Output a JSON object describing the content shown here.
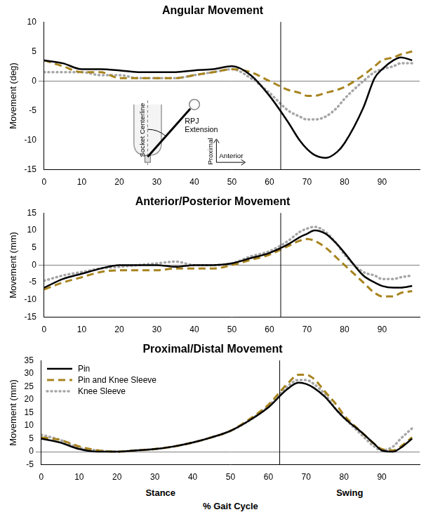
{
  "chart_data": [
    {
      "type": "line",
      "title": "Angular Movement",
      "y_label": "Movement (deg)",
      "x": [
        0,
        5,
        10,
        15,
        20,
        25,
        30,
        35,
        40,
        45,
        50,
        55,
        60,
        65,
        68,
        70,
        72,
        75,
        78,
        80,
        85,
        88,
        90,
        93,
        95,
        98
      ],
      "xlim": [
        0,
        100
      ],
      "xticks": [
        0,
        10,
        20,
        30,
        40,
        50,
        60,
        70,
        80,
        90
      ],
      "ylim": [
        -15,
        10
      ],
      "yticks": [
        -15,
        -10,
        -5,
        0,
        5,
        10
      ],
      "grid": false,
      "phase_boundary": 63,
      "series": [
        {
          "name": "Pin",
          "color": "#000000",
          "line_style": "solid",
          "values": [
            3.5,
            3,
            2,
            2,
            1.8,
            1.5,
            1.5,
            1.5,
            1.8,
            2,
            2.5,
            1,
            -2.5,
            -7,
            -10,
            -11.5,
            -12.5,
            -13,
            -12,
            -10.5,
            -4.5,
            0.5,
            2,
            3.5,
            4,
            3.5
          ]
        },
        {
          "name": "Pin and Knee Sleeve",
          "color": "#a8841e",
          "line_style": "dashed",
          "values": [
            3.5,
            2.5,
            1.5,
            1.5,
            0.5,
            0.5,
            0.5,
            0.5,
            1,
            1.5,
            2,
            1.5,
            0,
            -1.5,
            -2,
            -2.5,
            -2.5,
            -2,
            -1.5,
            -1,
            1,
            2.5,
            3.5,
            4,
            4.5,
            5
          ]
        },
        {
          "name": "Knee Sleeve",
          "color": "#a6a6a6",
          "line_style": "dotted",
          "values": [
            1.5,
            1.5,
            1.5,
            1,
            1,
            0.5,
            0.5,
            0.5,
            1,
            1.5,
            2,
            0.5,
            -2,
            -5,
            -6,
            -6.5,
            -6.5,
            -6,
            -4.5,
            -3,
            0,
            1.5,
            2,
            2.5,
            3,
            3
          ]
        }
      ],
      "inset_labels": {
        "centerline": "Socket Centerline",
        "angle": "RPJ Extension",
        "up": "Proximal",
        "forward": "Anterior"
      }
    },
    {
      "type": "line",
      "title": "Anterior/Posterior Movement",
      "y_label": "Movement (mm)",
      "x": [
        0,
        5,
        10,
        15,
        20,
        25,
        30,
        35,
        40,
        45,
        50,
        55,
        60,
        65,
        68,
        70,
        72,
        75,
        78,
        80,
        85,
        88,
        90,
        93,
        95,
        98
      ],
      "xlim": [
        0,
        100
      ],
      "xticks": [
        0,
        10,
        20,
        30,
        40,
        50,
        60,
        70,
        80,
        90
      ],
      "ylim": [
        -15,
        15
      ],
      "yticks": [
        -15,
        -10,
        -5,
        0,
        5,
        10,
        15
      ],
      "grid": false,
      "phase_boundary": 63,
      "series": [
        {
          "name": "Pin",
          "color": "#000000",
          "line_style": "solid",
          "values": [
            -6.5,
            -4,
            -2.5,
            -1,
            0,
            0,
            0,
            -0.5,
            0,
            0,
            0.5,
            2,
            3.5,
            6,
            8,
            9,
            10,
            9,
            6,
            3.5,
            -3,
            -5,
            -6,
            -6.5,
            -6.5,
            -6
          ]
        },
        {
          "name": "Pin and Knee Sleeve",
          "color": "#a8841e",
          "line_style": "dashed",
          "values": [
            -7,
            -5,
            -3.5,
            -2,
            -1.5,
            -1.5,
            -1.5,
            -1,
            -1,
            -1,
            0,
            1.5,
            3,
            5.5,
            7,
            7.5,
            7,
            5,
            2,
            0,
            -5,
            -8,
            -9,
            -9,
            -8,
            -7.5
          ]
        },
        {
          "name": "Knee Sleeve",
          "color": "#a6a6a6",
          "line_style": "dotted",
          "values": [
            -4.5,
            -3,
            -2,
            -1,
            -0.5,
            0,
            0.5,
            1,
            0,
            0,
            0.5,
            2.5,
            4,
            7,
            9.5,
            10.5,
            11,
            9.5,
            6,
            3,
            -2,
            -3,
            -4,
            -4,
            -3.5,
            -3
          ]
        }
      ]
    },
    {
      "type": "line",
      "title": "Proximal/Distal Movement",
      "y_label": "Movement (mm)",
      "x_label": "% Gait Cycle",
      "phase_labels": [
        "Stance",
        "Swing"
      ],
      "x": [
        0,
        5,
        10,
        15,
        20,
        25,
        30,
        35,
        40,
        45,
        50,
        55,
        60,
        65,
        68,
        70,
        72,
        75,
        78,
        80,
        85,
        88,
        90,
        93,
        95,
        98
      ],
      "xlim": [
        0,
        100
      ],
      "xticks": [
        0,
        10,
        20,
        30,
        40,
        50,
        60,
        70,
        80,
        90
      ],
      "ylim": [
        -5,
        35
      ],
      "yticks": [
        -5,
        0,
        5,
        10,
        15,
        20,
        25,
        30,
        35
      ],
      "grid": false,
      "phase_boundary": 63,
      "legend": "upper left",
      "series": [
        {
          "name": "Pin",
          "color": "#000000",
          "line_style": "solid",
          "values": [
            5,
            3.5,
            1,
            0,
            0,
            0.5,
            1,
            2,
            3.5,
            5.5,
            8,
            12,
            17,
            24,
            26.5,
            26,
            24.5,
            21,
            16,
            13,
            7,
            3,
            0.5,
            0,
            1.5,
            5
          ]
        },
        {
          "name": "Pin and Knee Sleeve",
          "color": "#a8841e",
          "line_style": "dashed",
          "values": [
            5.5,
            4.5,
            2,
            0.5,
            0,
            0.5,
            1,
            2,
            3.5,
            5.5,
            8,
            12.5,
            18,
            26,
            29.5,
            29.5,
            28,
            23,
            18,
            14,
            7,
            3,
            1,
            0.5,
            2,
            5.5
          ]
        },
        {
          "name": "Knee Sleeve",
          "color": "#a6a6a6",
          "line_style": "dotted",
          "values": [
            6.5,
            4.5,
            1.5,
            0.5,
            0,
            0.5,
            1,
            2,
            3.5,
            5.5,
            8,
            12,
            17.5,
            25,
            27.5,
            27.5,
            26,
            22,
            16,
            13,
            6,
            2,
            0.5,
            2,
            5,
            9
          ]
        }
      ]
    }
  ]
}
